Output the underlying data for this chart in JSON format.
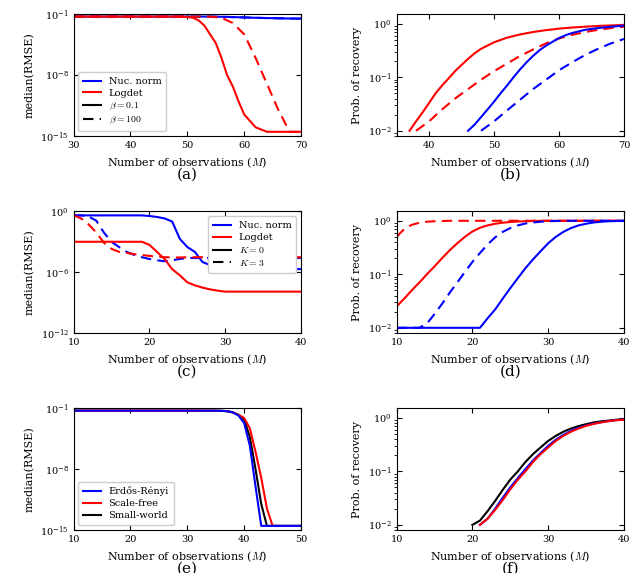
{
  "fig_width": 6.4,
  "fig_height": 5.73,
  "subplot_a": {
    "xlim": [
      30,
      70
    ],
    "ylim_log": [
      -15,
      -1
    ],
    "yticks": [
      1e-15,
      1e-08,
      0.1
    ],
    "xticks": [
      30,
      40,
      50,
      60,
      70
    ],
    "xlabel": "Number of observations ($M$)",
    "ylabel": "median(RMSE)",
    "label": "(a)",
    "blue_solid_x": [
      30,
      32,
      34,
      36,
      38,
      40,
      42,
      44,
      46,
      48,
      50,
      52,
      54,
      56,
      58,
      60,
      62,
      64,
      66,
      68,
      70
    ],
    "blue_solid_y": [
      0.055,
      0.055,
      0.055,
      0.055,
      0.055,
      0.055,
      0.055,
      0.055,
      0.055,
      0.055,
      0.055,
      0.055,
      0.055,
      0.052,
      0.048,
      0.044,
      0.04,
      0.037,
      0.035,
      0.033,
      0.032
    ],
    "blue_dashed_x": [
      30,
      32,
      34,
      36,
      38,
      40,
      42,
      44,
      46,
      48,
      50,
      52,
      54,
      56,
      58,
      60,
      62,
      64,
      66,
      68,
      70
    ],
    "blue_dashed_y": [
      0.055,
      0.055,
      0.055,
      0.055,
      0.055,
      0.055,
      0.055,
      0.055,
      0.055,
      0.055,
      0.055,
      0.055,
      0.055,
      0.052,
      0.048,
      0.044,
      0.04,
      0.037,
      0.035,
      0.033,
      0.032
    ],
    "red_solid_x": [
      30,
      32,
      34,
      36,
      38,
      40,
      42,
      44,
      46,
      48,
      50,
      51,
      52,
      53,
      54,
      55,
      56,
      57,
      58,
      59,
      60,
      62,
      64,
      66,
      68,
      70
    ],
    "red_solid_y": [
      0.055,
      0.055,
      0.055,
      0.055,
      0.055,
      0.055,
      0.055,
      0.055,
      0.055,
      0.055,
      0.05,
      0.04,
      0.02,
      0.005,
      0.0005,
      5e-05,
      1e-06,
      1e-08,
      5e-10,
      1e-11,
      3e-13,
      1e-14,
      3e-15,
      3e-15,
      3e-15,
      3e-15
    ],
    "red_dashed_x": [
      30,
      32,
      34,
      36,
      38,
      40,
      42,
      44,
      46,
      48,
      50,
      52,
      54,
      56,
      58,
      60,
      62,
      64,
      66,
      68,
      70
    ],
    "red_dashed_y": [
      0.055,
      0.055,
      0.055,
      0.055,
      0.055,
      0.055,
      0.055,
      0.055,
      0.055,
      0.055,
      0.055,
      0.055,
      0.055,
      0.04,
      0.01,
      0.0005,
      1e-06,
      1e-09,
      1e-12,
      3e-15,
      3e-15
    ]
  },
  "subplot_b": {
    "xlim": [
      35,
      70
    ],
    "ylim": [
      0.008,
      1.5
    ],
    "xticks": [
      40,
      50,
      60,
      70
    ],
    "xlabel": "Number of observations ($M$)",
    "ylabel": "Prob. of recovery",
    "label": "(b)",
    "red_solid_x": [
      37,
      38,
      39,
      40,
      41,
      42,
      43,
      44,
      45,
      46,
      47,
      48,
      50,
      52,
      54,
      56,
      58,
      60,
      62,
      64,
      66,
      68,
      70
    ],
    "red_solid_y": [
      0.01,
      0.015,
      0.022,
      0.033,
      0.05,
      0.07,
      0.095,
      0.13,
      0.17,
      0.22,
      0.28,
      0.34,
      0.45,
      0.55,
      0.63,
      0.7,
      0.76,
      0.81,
      0.85,
      0.88,
      0.91,
      0.93,
      0.95
    ],
    "red_dashed_x": [
      38,
      40,
      42,
      44,
      46,
      48,
      50,
      52,
      54,
      56,
      58,
      60,
      62,
      64,
      66,
      68,
      70
    ],
    "red_dashed_y": [
      0.01,
      0.015,
      0.025,
      0.04,
      0.06,
      0.09,
      0.13,
      0.18,
      0.25,
      0.33,
      0.43,
      0.53,
      0.62,
      0.7,
      0.77,
      0.83,
      0.88
    ],
    "blue_solid_x": [
      46,
      47,
      48,
      49,
      50,
      51,
      52,
      53,
      54,
      55,
      56,
      57,
      58,
      59,
      60,
      61,
      62,
      64,
      66,
      68,
      70
    ],
    "blue_solid_y": [
      0.01,
      0.013,
      0.018,
      0.025,
      0.035,
      0.05,
      0.07,
      0.1,
      0.14,
      0.19,
      0.25,
      0.32,
      0.39,
      0.46,
      0.54,
      0.61,
      0.67,
      0.77,
      0.83,
      0.88,
      0.92
    ],
    "blue_dashed_x": [
      48,
      50,
      52,
      54,
      56,
      58,
      60,
      62,
      64,
      66,
      68,
      70
    ],
    "blue_dashed_y": [
      0.01,
      0.015,
      0.024,
      0.038,
      0.06,
      0.09,
      0.135,
      0.19,
      0.26,
      0.34,
      0.43,
      0.52
    ]
  },
  "subplot_c": {
    "xlim": [
      10,
      40
    ],
    "ylim_log": [
      -12,
      0
    ],
    "yticks": [
      1e-12,
      1e-06,
      1.0
    ],
    "xticks": [
      10,
      20,
      30,
      40
    ],
    "xlabel": "Number of observations ($M$)",
    "ylabel": "median(RMSE)",
    "label": "(c)",
    "blue_solid_x": [
      10,
      11,
      12,
      13,
      14,
      15,
      16,
      17,
      18,
      19,
      20,
      21,
      22,
      23,
      24,
      25,
      26,
      27,
      28,
      29,
      30,
      31,
      32,
      33,
      34,
      35,
      36,
      37,
      38,
      39,
      40
    ],
    "blue_solid_y": [
      0.4,
      0.4,
      0.4,
      0.4,
      0.4,
      0.4,
      0.4,
      0.4,
      0.4,
      0.4,
      0.35,
      0.28,
      0.2,
      0.1,
      0.002,
      0.0003,
      0.0001,
      1e-05,
      5e-06,
      3e-06,
      2e-06,
      2e-06,
      2e-06,
      2e-06,
      2e-06,
      2e-06,
      2e-06,
      2e-06,
      2e-06,
      2e-06,
      2e-06
    ],
    "blue_dashed_x": [
      10,
      11,
      12,
      13,
      14,
      15,
      16,
      17,
      18,
      19,
      20,
      21,
      22,
      23,
      24,
      25,
      26,
      27,
      28,
      29,
      30,
      31,
      32,
      33,
      34,
      35,
      36,
      37,
      38,
      39,
      40
    ],
    "blue_dashed_y": [
      0.4,
      0.4,
      0.3,
      0.12,
      0.008,
      0.001,
      0.0003,
      0.0001,
      5e-05,
      3e-05,
      2e-05,
      1.5e-05,
      1.2e-05,
      1.5e-05,
      2e-05,
      2.5e-05,
      2.5e-05,
      2.5e-05,
      2.5e-05,
      2.5e-05,
      2.5e-05,
      2.5e-05,
      2.5e-05,
      2.5e-05,
      2.5e-05,
      2.5e-05,
      2.5e-05,
      2.5e-05,
      2.5e-05,
      2.5e-05,
      2.5e-05
    ],
    "red_solid_x": [
      10,
      11,
      12,
      13,
      14,
      15,
      16,
      17,
      18,
      19,
      20,
      21,
      22,
      23,
      24,
      25,
      26,
      27,
      28,
      29,
      30,
      31,
      32,
      33,
      34,
      35,
      36,
      37,
      38,
      39,
      40
    ],
    "red_solid_y": [
      0.001,
      0.001,
      0.001,
      0.001,
      0.001,
      0.001,
      0.001,
      0.001,
      0.001,
      0.001,
      0.0005,
      0.0001,
      2e-05,
      2e-06,
      5e-07,
      1e-07,
      5e-08,
      3e-08,
      2e-08,
      1.5e-08,
      1.2e-08,
      1.2e-08,
      1.2e-08,
      1.2e-08,
      1.2e-08,
      1.2e-08,
      1.2e-08,
      1.2e-08,
      1.2e-08,
      1.2e-08,
      1.2e-08
    ],
    "red_dashed_x": [
      10,
      11,
      12,
      13,
      14,
      15,
      16,
      17,
      18,
      19,
      20,
      21,
      22,
      23,
      24,
      25,
      26,
      27,
      28,
      29,
      30,
      31,
      32,
      33,
      34,
      35,
      36,
      37,
      38,
      39,
      40
    ],
    "red_dashed_y": [
      0.4,
      0.2,
      0.05,
      0.008,
      0.0008,
      0.0002,
      0.0001,
      8e-05,
      6e-05,
      5e-05,
      4e-05,
      3.5e-05,
      3e-05,
      2.8e-05,
      2.8e-05,
      3e-05,
      3e-05,
      3e-05,
      3e-05,
      3e-05,
      3e-05,
      3e-05,
      3e-05,
      3e-05,
      3e-05,
      3e-05,
      3e-05,
      3e-05,
      3e-05,
      3e-05,
      3e-05
    ]
  },
  "subplot_d": {
    "xlim": [
      10,
      40
    ],
    "ylim": [
      0.008,
      1.5
    ],
    "xticks": [
      10,
      20,
      30,
      40
    ],
    "xlabel": "Number of observations ($M$)",
    "ylabel": "Prob. of recovery",
    "label": "(d)",
    "red_solid_x": [
      10,
      11,
      12,
      13,
      14,
      15,
      16,
      17,
      18,
      19,
      20,
      21,
      22,
      23,
      24,
      25,
      26,
      27,
      28,
      29,
      30,
      31,
      32,
      33,
      34,
      35,
      36,
      37,
      38,
      39,
      40
    ],
    "red_solid_y": [
      0.025,
      0.035,
      0.05,
      0.07,
      0.1,
      0.14,
      0.2,
      0.28,
      0.38,
      0.5,
      0.63,
      0.74,
      0.82,
      0.88,
      0.92,
      0.95,
      0.97,
      0.98,
      0.99,
      1.0,
      1.0,
      1.0,
      1.0,
      1.0,
      1.0,
      1.0,
      1.0,
      1.0,
      1.0,
      1.0,
      1.0
    ],
    "red_dashed_x": [
      10,
      11,
      12,
      13,
      14,
      15,
      16,
      17,
      18,
      19,
      20,
      21,
      22,
      23,
      24,
      25,
      26,
      27,
      28,
      29,
      30,
      31,
      32,
      33,
      34,
      35,
      36,
      37,
      38,
      39,
      40
    ],
    "red_dashed_y": [
      0.5,
      0.7,
      0.84,
      0.92,
      0.96,
      0.98,
      0.99,
      1.0,
      1.0,
      1.0,
      1.0,
      1.0,
      1.0,
      1.0,
      1.0,
      1.0,
      1.0,
      1.0,
      1.0,
      1.0,
      1.0,
      1.0,
      1.0,
      1.0,
      1.0,
      1.0,
      1.0,
      1.0,
      1.0,
      1.0,
      1.0
    ],
    "blue_solid_x": [
      10,
      11,
      12,
      13,
      14,
      15,
      16,
      17,
      18,
      19,
      20,
      21,
      22,
      23,
      24,
      25,
      26,
      27,
      28,
      29,
      30,
      31,
      32,
      33,
      34,
      35,
      36,
      37,
      38,
      39,
      40
    ],
    "blue_solid_y": [
      0.01,
      0.01,
      0.01,
      0.01,
      0.01,
      0.01,
      0.01,
      0.01,
      0.01,
      0.01,
      0.01,
      0.01,
      0.015,
      0.022,
      0.035,
      0.055,
      0.085,
      0.13,
      0.19,
      0.27,
      0.38,
      0.5,
      0.62,
      0.73,
      0.82,
      0.88,
      0.93,
      0.96,
      0.98,
      0.99,
      1.0
    ],
    "blue_dashed_x": [
      10,
      11,
      12,
      13,
      14,
      15,
      16,
      17,
      18,
      19,
      20,
      21,
      22,
      23,
      24,
      25,
      26,
      27,
      28,
      29,
      30,
      31,
      32,
      33,
      34,
      35,
      36,
      37,
      38,
      39,
      40
    ],
    "blue_dashed_y": [
      0.01,
      0.01,
      0.01,
      0.01,
      0.012,
      0.018,
      0.028,
      0.045,
      0.07,
      0.11,
      0.17,
      0.25,
      0.36,
      0.49,
      0.62,
      0.73,
      0.82,
      0.89,
      0.93,
      0.96,
      0.98,
      0.99,
      1.0,
      1.0,
      1.0,
      1.0,
      1.0,
      1.0,
      1.0,
      1.0,
      1.0
    ]
  },
  "subplot_e": {
    "xlim": [
      10,
      50
    ],
    "ylim_log": [
      -15,
      -1
    ],
    "yticks": [
      1e-15,
      1e-08,
      0.1
    ],
    "xticks": [
      10,
      20,
      30,
      40,
      50
    ],
    "xlabel": "Number of observations ($M$)",
    "ylabel": "median(RMSE)",
    "label": "(e)",
    "black_x": [
      10,
      15,
      20,
      25,
      30,
      35,
      36,
      37,
      38,
      39,
      40,
      41,
      42,
      43,
      44,
      45,
      46,
      47,
      48,
      49,
      50
    ],
    "black_y": [
      0.055,
      0.055,
      0.055,
      0.055,
      0.055,
      0.054,
      0.052,
      0.048,
      0.035,
      0.018,
      0.005,
      5e-05,
      1e-08,
      1e-12,
      3e-15,
      3e-15,
      3e-15,
      3e-15,
      3e-15,
      3e-15,
      3e-15
    ],
    "blue_x": [
      10,
      15,
      20,
      25,
      30,
      35,
      36,
      37,
      38,
      39,
      40,
      41,
      42,
      43,
      44,
      45,
      46,
      47,
      48,
      49,
      50
    ],
    "blue_y": [
      0.055,
      0.055,
      0.055,
      0.055,
      0.055,
      0.054,
      0.052,
      0.048,
      0.035,
      0.015,
      0.002,
      5e-06,
      1e-10,
      3e-15,
      3e-15,
      3e-15,
      3e-15,
      3e-15,
      3e-15,
      3e-15,
      3e-15
    ],
    "red_x": [
      10,
      15,
      20,
      25,
      30,
      35,
      36,
      37,
      38,
      39,
      40,
      41,
      42,
      43,
      44,
      45,
      46,
      47,
      48,
      49,
      50
    ],
    "red_y": [
      0.055,
      0.055,
      0.055,
      0.055,
      0.055,
      0.054,
      0.052,
      0.048,
      0.035,
      0.018,
      0.008,
      0.0005,
      1e-06,
      1e-09,
      3e-13,
      3e-15,
      3e-15,
      3e-15,
      3e-15,
      3e-15,
      3e-15
    ]
  },
  "subplot_f": {
    "xlim": [
      10,
      40
    ],
    "ylim": [
      0.008,
      1.5
    ],
    "xticks": [
      10,
      20,
      30,
      40
    ],
    "xlabel": "Number of observations ($M$)",
    "ylabel": "Prob. of recovery",
    "label": "(f)",
    "black_x": [
      20,
      21,
      22,
      23,
      24,
      25,
      26,
      27,
      28,
      29,
      30,
      31,
      32,
      33,
      34,
      35,
      36,
      37,
      38,
      39,
      40
    ],
    "black_y": [
      0.01,
      0.012,
      0.018,
      0.028,
      0.045,
      0.07,
      0.1,
      0.15,
      0.21,
      0.28,
      0.37,
      0.46,
      0.55,
      0.63,
      0.7,
      0.76,
      0.82,
      0.86,
      0.89,
      0.92,
      0.94
    ],
    "blue_x": [
      21,
      22,
      23,
      24,
      25,
      26,
      27,
      28,
      29,
      30,
      31,
      32,
      33,
      34,
      35,
      36,
      37,
      38,
      39,
      40
    ],
    "blue_y": [
      0.01,
      0.013,
      0.02,
      0.032,
      0.05,
      0.075,
      0.11,
      0.16,
      0.22,
      0.3,
      0.39,
      0.48,
      0.57,
      0.65,
      0.72,
      0.78,
      0.83,
      0.87,
      0.91,
      0.93
    ],
    "red_x": [
      21,
      22,
      23,
      24,
      25,
      26,
      27,
      28,
      29,
      30,
      31,
      32,
      33,
      34,
      35,
      36,
      37,
      38,
      39,
      40
    ],
    "red_y": [
      0.01,
      0.013,
      0.019,
      0.029,
      0.046,
      0.07,
      0.1,
      0.15,
      0.21,
      0.28,
      0.37,
      0.46,
      0.55,
      0.63,
      0.71,
      0.77,
      0.82,
      0.87,
      0.9,
      0.93
    ]
  },
  "blue_color": "#0000FF",
  "red_color": "#FF0000",
  "black_color": "#000000",
  "linewidth": 1.5,
  "fontsize_label": 8,
  "fontsize_tick": 7,
  "fontsize_legend": 7,
  "fontsize_caption": 11
}
